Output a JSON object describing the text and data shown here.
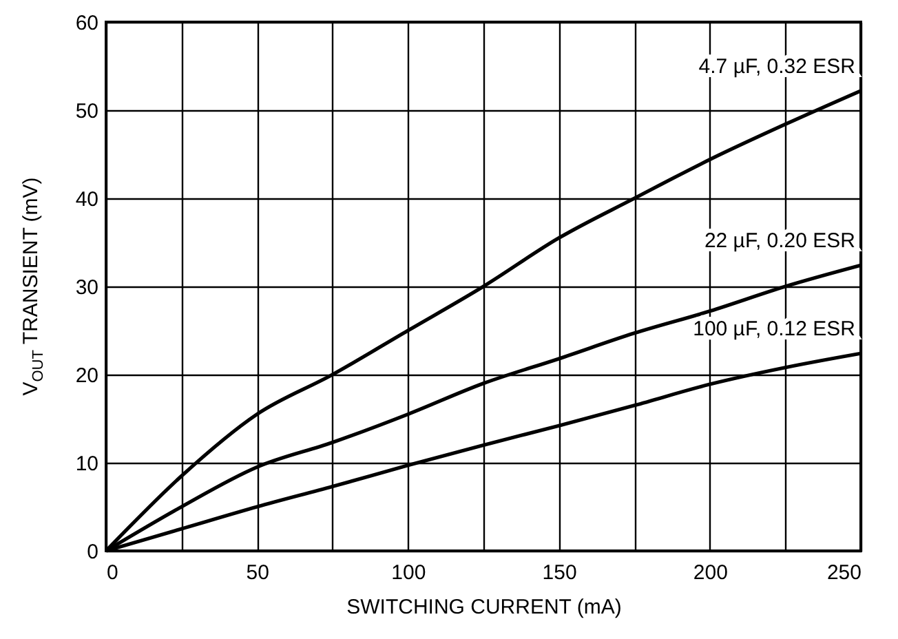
{
  "chart_data": {
    "type": "line",
    "xlabel": "SWITCHING CURRENT (mA)",
    "ylabel": "V$_{OUT}$ TRANSIENT (mV)",
    "x": [
      0,
      25,
      50,
      75,
      100,
      125,
      150,
      175,
      200,
      225,
      250
    ],
    "series": [
      {
        "name": "4.7 µF, 0.32 ESR",
        "color": "#000000",
        "values": [
          0,
          8.5,
          15.5,
          20,
          25,
          30,
          35.5,
          40,
          44.4,
          48.4,
          52.2
        ]
      },
      {
        "name": "22 µF, 0.20 ESR",
        "color": "#000000",
        "values": [
          0,
          5,
          9.5,
          12.3,
          15.5,
          19,
          21.8,
          24.7,
          27.2,
          30,
          32.4
        ]
      },
      {
        "name": "100 µF, 0.12 ESR",
        "color": "#000000",
        "values": [
          0,
          2.5,
          5,
          7.3,
          9.7,
          12,
          14.2,
          16.5,
          18.9,
          20.8,
          22.4
        ]
      }
    ],
    "xlim": [
      0,
      250
    ],
    "xticks": [
      0,
      {
        "value": 25,
        "label": null
      },
      50,
      {
        "value": 75,
        "label": null
      },
      100,
      {
        "value": 125,
        "label": null
      },
      150,
      {
        "value": 175,
        "label": null
      },
      200,
      {
        "value": 225,
        "label": null
      },
      250
    ],
    "ylim": [
      0,
      60
    ],
    "yticks": [
      0,
      10,
      20,
      30,
      40,
      50,
      60
    ],
    "grid": true
  }
}
